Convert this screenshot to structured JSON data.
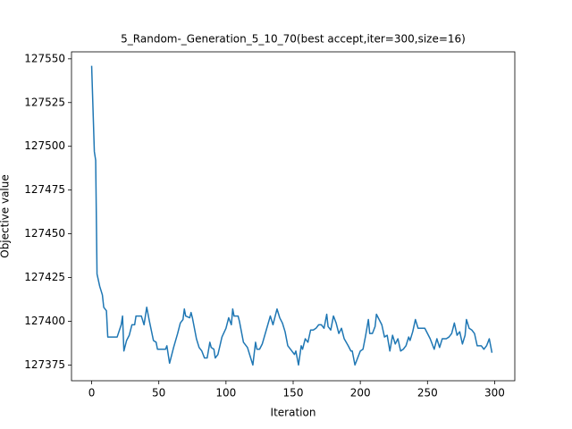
{
  "chart_data": {
    "type": "line",
    "title": "5_Random-_Generation_5_10_70(best accept,iter=300,size=16)",
    "x_label": "Iteration",
    "y_label": "Objective value",
    "xlim": [
      -15,
      315
    ],
    "ylim": [
      127366,
      127554
    ],
    "xticks": [
      0,
      50,
      100,
      150,
      200,
      250,
      300
    ],
    "yticks": [
      127375,
      127400,
      127425,
      127450,
      127475,
      127500,
      127525,
      127550
    ],
    "grid": false,
    "x": [
      0,
      2,
      3,
      4,
      6,
      8,
      9,
      11,
      12,
      16,
      19,
      22,
      23,
      24,
      26,
      28,
      30,
      32,
      33,
      37,
      39,
      41,
      43,
      46,
      48,
      49,
      55,
      56,
      58,
      61,
      64,
      66,
      68,
      69,
      70,
      73,
      74,
      75,
      78,
      80,
      82,
      84,
      86,
      88,
      89,
      91,
      92,
      94,
      97,
      100,
      102,
      104,
      105,
      106,
      109,
      110,
      113,
      116,
      118,
      120,
      122,
      123,
      125,
      127,
      130,
      133,
      135,
      138,
      140,
      142,
      144,
      146,
      149,
      151,
      152,
      154,
      156,
      157,
      159,
      161,
      163,
      165,
      167,
      169,
      171,
      173,
      175,
      176,
      178,
      180,
      182,
      184,
      186,
      188,
      191,
      193,
      194,
      196,
      198,
      200,
      202,
      204,
      206,
      207,
      209,
      211,
      212,
      214,
      216,
      218,
      220,
      222,
      224,
      226,
      228,
      230,
      232,
      234,
      236,
      237,
      239,
      241,
      243,
      246,
      248,
      250,
      252,
      255,
      257,
      259,
      261,
      264,
      266,
      268,
      270,
      272,
      274,
      276,
      278,
      279,
      281,
      283,
      285,
      287,
      290,
      292,
      294,
      296,
      298
    ],
    "series": [
      {
        "name": "objective",
        "color": "#1f77b4",
        "values": [
          127546,
          127497,
          127492,
          127427,
          127420,
          127415,
          127408,
          127406,
          127391,
          127391,
          127391,
          127398,
          127403,
          127383,
          127389,
          127392,
          127398,
          127398,
          127403,
          127403,
          127398,
          127408,
          127400,
          127389,
          127388,
          127384,
          127384,
          127386,
          127376,
          127385,
          127393,
          127399,
          127401,
          127407,
          127403,
          127402,
          127405,
          127402,
          127390,
          127385,
          127383,
          127379,
          127379,
          127388,
          127385,
          127384,
          127379,
          127381,
          127391,
          127396,
          127402,
          127398,
          127407,
          127403,
          127403,
          127400,
          127388,
          127385,
          127380,
          127375,
          127388,
          127384,
          127384,
          127387,
          127395,
          127403,
          127398,
          127407,
          127402,
          127399,
          127394,
          127386,
          127383,
          127381,
          127383,
          127375,
          127386,
          127384,
          127390,
          127388,
          127395,
          127395,
          127396,
          127398,
          127398,
          127396,
          127404,
          127397,
          127395,
          127403,
          127399,
          127393,
          127396,
          127390,
          127386,
          127383,
          127383,
          127375,
          127379,
          127383,
          127384,
          127392,
          127401,
          127393,
          127393,
          127397,
          127404,
          127401,
          127398,
          127391,
          127392,
          127383,
          127392,
          127387,
          127390,
          127383,
          127384,
          127386,
          127391,
          127389,
          127394,
          127401,
          127396,
          127396,
          127396,
          127393,
          127390,
          127384,
          127390,
          127385,
          127390,
          127390,
          127391,
          127393,
          127399,
          127392,
          127394,
          127387,
          127392,
          127401,
          127396,
          127395,
          127393,
          127386,
          127386,
          127384,
          127386,
          127390,
          127382
        ]
      }
    ]
  }
}
